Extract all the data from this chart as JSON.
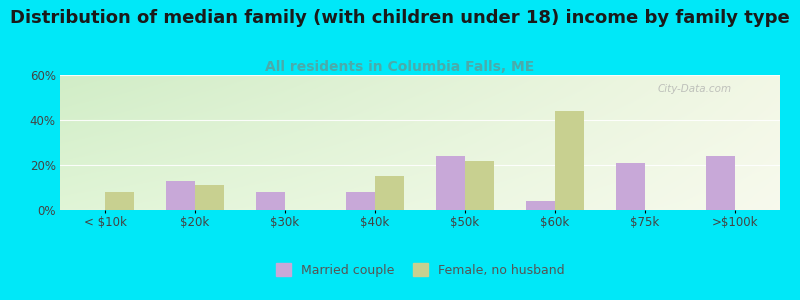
{
  "title": "Distribution of median family (with children under 18) income by family type",
  "subtitle": "All residents in Columbia Falls, ME",
  "categories": [
    "< $10k",
    "$20k",
    "$30k",
    "$40k",
    "$50k",
    "$60k",
    "$75k",
    ">$100k"
  ],
  "married_couple": [
    0,
    13,
    8,
    8,
    24,
    4,
    21,
    24
  ],
  "female_no_husband": [
    8,
    11,
    0,
    15,
    22,
    44,
    0,
    0
  ],
  "married_color": "#c8a8d8",
  "female_color": "#c8d090",
  "background_outer": "#00e8f8",
  "ylim": [
    0,
    60
  ],
  "yticks": [
    0,
    20,
    40,
    60
  ],
  "title_fontsize": 13,
  "subtitle_fontsize": 10,
  "subtitle_color": "#4aabab",
  "bar_width": 0.32,
  "watermark": "City-Data.com",
  "legend_married": "Married couple",
  "legend_female": "Female, no husband"
}
